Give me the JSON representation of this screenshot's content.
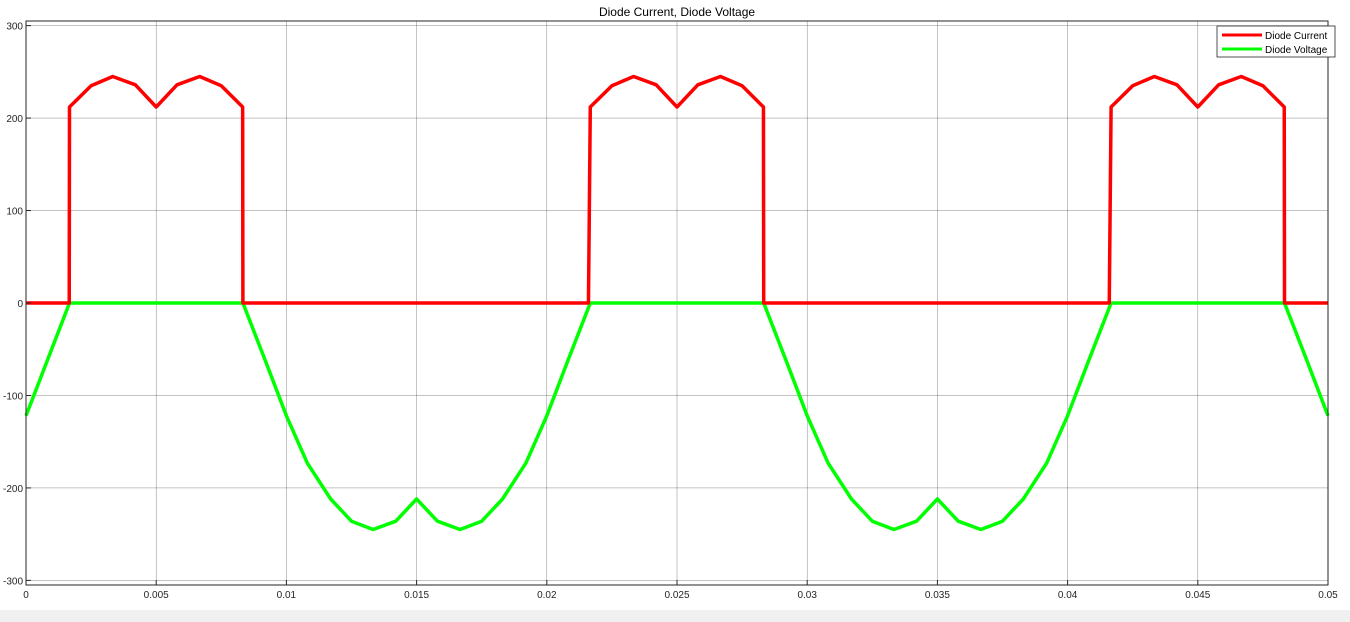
{
  "chart_data": {
    "type": "line",
    "title": "Diode Current, Diode Voltage",
    "xlabel": "",
    "ylabel": "",
    "xlim": [
      0,
      0.05
    ],
    "ylim": [
      -305,
      305
    ],
    "grid": true,
    "legend_position": "top-right",
    "x_ticks": [
      0,
      0.005,
      0.01,
      0.015,
      0.02,
      0.025,
      0.03,
      0.035,
      0.04,
      0.045,
      0.05
    ],
    "x_tick_labels": [
      "0",
      "0.005",
      "0.01",
      "0.015",
      "0.02",
      "0.025",
      "0.03",
      "0.035",
      "0.04",
      "0.045",
      "0.05"
    ],
    "y_ticks": [
      -300,
      -200,
      -100,
      0,
      100,
      200,
      300
    ],
    "y_tick_labels": [
      "-300",
      "-200",
      "-100",
      "0",
      "100",
      "200",
      "300"
    ],
    "series": [
      {
        "name": "Diode Current",
        "color": "#ff0000",
        "x": [
          0,
          0.00166,
          0.00167,
          0.0025,
          0.00333,
          0.0042,
          0.005,
          0.0058,
          0.00667,
          0.0075,
          0.00832,
          0.00833,
          0.0216,
          0.02167,
          0.0225,
          0.02333,
          0.0242,
          0.025,
          0.0258,
          0.02667,
          0.0275,
          0.02832,
          0.02833,
          0.0416,
          0.04167,
          0.0425,
          0.04333,
          0.0442,
          0.045,
          0.0458,
          0.04667,
          0.0475,
          0.04832,
          0.04833,
          0.05
        ],
        "y": [
          0,
          0,
          212,
          235,
          245,
          236,
          212,
          236,
          245,
          235,
          212,
          0,
          0,
          212,
          235,
          245,
          236,
          212,
          236,
          245,
          235,
          212,
          0,
          0,
          212,
          235,
          245,
          236,
          212,
          236,
          245,
          235,
          212,
          0,
          0
        ]
      },
      {
        "name": "Diode Voltage",
        "color": "#00ff00",
        "x": [
          0,
          0.00167,
          0.00833,
          0.0092,
          0.01,
          0.0108,
          0.0117,
          0.0125,
          0.01333,
          0.0142,
          0.015,
          0.0158,
          0.01667,
          0.0175,
          0.0183,
          0.0192,
          0.02,
          0.0208,
          0.02167,
          0.02833,
          0.0292,
          0.03,
          0.0308,
          0.0317,
          0.0325,
          0.03333,
          0.0342,
          0.035,
          0.0358,
          0.03667,
          0.0375,
          0.0383,
          0.0392,
          0.04,
          0.0408,
          0.04167,
          0.04833,
          0.0492,
          0.05
        ],
        "y": [
          -122,
          0,
          0,
          -63,
          -122,
          -173,
          -212,
          -236,
          -245,
          -236,
          -212,
          -236,
          -245,
          -236,
          -212,
          -173,
          -122,
          -63,
          0,
          0,
          -63,
          -122,
          -173,
          -212,
          -236,
          -245,
          -236,
          -212,
          -236,
          -245,
          -236,
          -212,
          -173,
          -122,
          -63,
          0,
          0,
          -63,
          -122
        ]
      }
    ]
  }
}
